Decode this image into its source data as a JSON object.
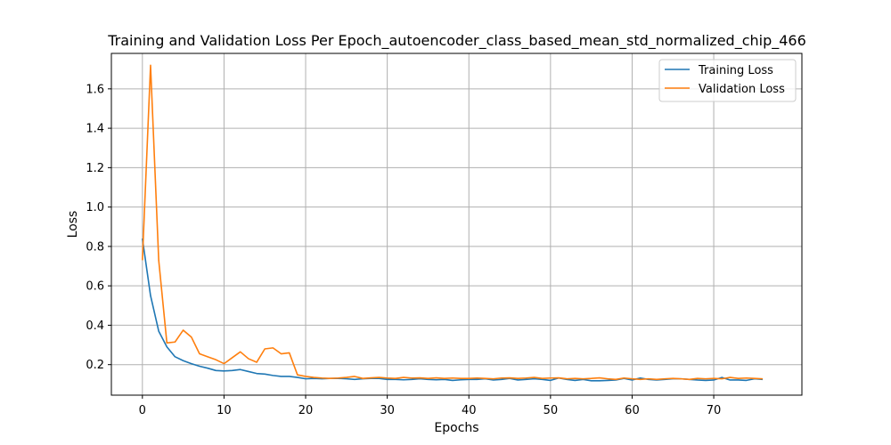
{
  "chart_data": {
    "type": "line",
    "title": "Training and Validation Loss Per Epoch_autoencoder_class_based_mean_std_normalized_chip_466",
    "xlabel": "Epochs",
    "ylabel": "Loss",
    "xlim": [
      -3.8,
      80.8
    ],
    "ylim": [
      0.045,
      1.78
    ],
    "xticks": [
      0,
      10,
      20,
      30,
      40,
      50,
      60,
      70
    ],
    "yticks": [
      0.2,
      0.4,
      0.6,
      0.8,
      1.0,
      1.2,
      1.4,
      1.6
    ],
    "xtick_labels": [
      "0",
      "10",
      "20",
      "30",
      "40",
      "50",
      "60",
      "70"
    ],
    "ytick_labels": [
      "0.2",
      "0.4",
      "0.6",
      "0.8",
      "1.0",
      "1.2",
      "1.4",
      "1.6"
    ],
    "grid": true,
    "legend_position": "top-right",
    "x": [
      0,
      1,
      2,
      3,
      4,
      5,
      6,
      7,
      8,
      9,
      10,
      11,
      12,
      13,
      14,
      15,
      16,
      17,
      18,
      19,
      20,
      21,
      22,
      23,
      24,
      25,
      26,
      27,
      28,
      29,
      30,
      31,
      32,
      33,
      34,
      35,
      36,
      37,
      38,
      39,
      40,
      41,
      42,
      43,
      44,
      45,
      46,
      47,
      48,
      49,
      50,
      51,
      52,
      53,
      54,
      55,
      56,
      57,
      58,
      59,
      60,
      61,
      62,
      63,
      64,
      65,
      66,
      67,
      68,
      69,
      70,
      71,
      72,
      73,
      74,
      75,
      76
    ],
    "series": [
      {
        "name": "Training Loss",
        "color": "#1f77b4",
        "values": [
          0.84,
          0.55,
          0.37,
          0.29,
          0.24,
          0.22,
          0.205,
          0.192,
          0.182,
          0.17,
          0.168,
          0.17,
          0.175,
          0.165,
          0.155,
          0.152,
          0.145,
          0.14,
          0.14,
          0.135,
          0.128,
          0.13,
          0.128,
          0.13,
          0.13,
          0.128,
          0.125,
          0.128,
          0.13,
          0.13,
          0.125,
          0.125,
          0.123,
          0.125,
          0.128,
          0.125,
          0.123,
          0.125,
          0.12,
          0.123,
          0.125,
          0.125,
          0.128,
          0.122,
          0.125,
          0.13,
          0.122,
          0.125,
          0.128,
          0.125,
          0.12,
          0.132,
          0.125,
          0.12,
          0.125,
          0.118,
          0.118,
          0.12,
          0.122,
          0.13,
          0.122,
          0.132,
          0.125,
          0.122,
          0.125,
          0.128,
          0.128,
          0.125,
          0.122,
          0.12,
          0.122,
          0.135,
          0.122,
          0.122,
          0.12,
          0.128,
          0.125
        ]
      },
      {
        "name": "Validation Loss",
        "color": "#ff7f0e",
        "values": [
          0.73,
          1.72,
          0.73,
          0.31,
          0.315,
          0.375,
          0.34,
          0.255,
          0.24,
          0.225,
          0.205,
          0.235,
          0.265,
          0.23,
          0.212,
          0.28,
          0.285,
          0.255,
          0.26,
          0.148,
          0.14,
          0.135,
          0.132,
          0.13,
          0.132,
          0.135,
          0.14,
          0.13,
          0.133,
          0.135,
          0.132,
          0.13,
          0.135,
          0.132,
          0.133,
          0.13,
          0.133,
          0.13,
          0.132,
          0.13,
          0.13,
          0.132,
          0.13,
          0.128,
          0.132,
          0.133,
          0.13,
          0.132,
          0.135,
          0.13,
          0.132,
          0.133,
          0.128,
          0.13,
          0.128,
          0.13,
          0.133,
          0.128,
          0.125,
          0.132,
          0.128,
          0.125,
          0.128,
          0.125,
          0.128,
          0.13,
          0.128,
          0.125,
          0.13,
          0.128,
          0.13,
          0.128,
          0.135,
          0.13,
          0.132,
          0.13,
          0.128
        ]
      }
    ]
  }
}
